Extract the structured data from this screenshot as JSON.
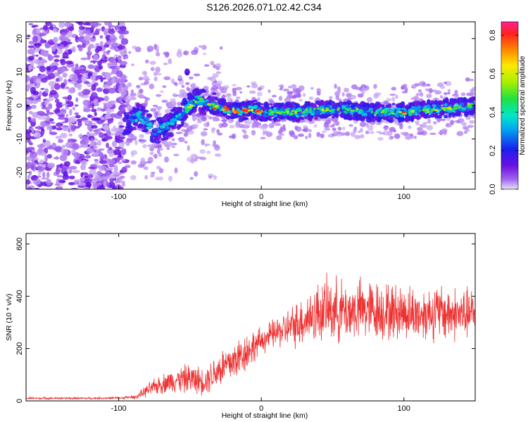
{
  "title": "S126.2026.071.02.42.C34",
  "colors": {
    "snr_line": "#ee3333",
    "spectro_low": "#ebe0ff",
    "spectro_mid": "#7a1ee8",
    "spectro_high": "#ff2a2a"
  },
  "chart_data": [
    {
      "type": "heatmap",
      "title": "S126.2026.071.02.42.C34",
      "xlabel": "Height of straight line (km)",
      "ylabel": "Frequency (Hz)",
      "xlim": [
        -165,
        150
      ],
      "ylim": [
        -25,
        25
      ],
      "x_ticks": [
        -100,
        0,
        100
      ],
      "x_tick_labels": [
        "-100",
        "0",
        "100"
      ],
      "y_ticks": [
        -20,
        -10,
        0,
        10,
        20
      ],
      "y_tick_labels": [
        "-20",
        "-10",
        "0",
        "10",
        "20"
      ],
      "colorbar": {
        "label": "Normalized spectral amplitude",
        "range": [
          0,
          0.87
        ],
        "ticks": [
          0.0,
          0.2,
          0.4,
          0.6,
          0.8
        ],
        "tick_labels": [
          "0.0",
          "0.2",
          "0.4",
          "0.6",
          "0.8"
        ],
        "colormap": "rainbow (purple-blue-cyan-green-yellow-red-magenta)"
      },
      "signal_track": {
        "description": "Strong narrow band centered near 0 Hz from about -50 km to 150 km; noise below -95 km",
        "x": [
          -95,
          -85,
          -75,
          -65,
          -55,
          -45,
          -35,
          -25,
          -15,
          -5,
          0,
          25,
          50,
          75,
          100,
          125,
          150
        ],
        "center_freq_hz": [
          -5,
          -3,
          -8,
          -6,
          -2,
          2,
          0,
          -1,
          -2,
          -1,
          -2,
          -2,
          -1,
          -2,
          -2,
          -1,
          0
        ]
      }
    },
    {
      "type": "line",
      "xlabel": "Height of straight line (km)",
      "ylabel": "SNR (10 * v/v)",
      "xlim": [
        -165,
        150
      ],
      "ylim": [
        0,
        640
      ],
      "x_ticks": [
        -100,
        0,
        100
      ],
      "x_tick_labels": [
        "-100",
        "0",
        "100"
      ],
      "y_ticks": [
        0,
        200,
        400,
        600
      ],
      "y_tick_labels": [
        "0",
        "200",
        "400",
        "600"
      ],
      "series": [
        {
          "name": "SNR",
          "x": [
            -165,
            -140,
            -120,
            -100,
            -88,
            -80,
            -70,
            -60,
            -50,
            -40,
            -30,
            -20,
            -10,
            0,
            10,
            20,
            30,
            40,
            50,
            60,
            70,
            80,
            90,
            100,
            110,
            120,
            130,
            140,
            150
          ],
          "mean": [
            10,
            10,
            10,
            11,
            15,
            40,
            65,
            80,
            85,
            75,
            120,
            150,
            190,
            230,
            260,
            280,
            310,
            340,
            350,
            340,
            350,
            345,
            340,
            340,
            330,
            340,
            335,
            330,
            330
          ],
          "amplitude": [
            5,
            5,
            5,
            5,
            8,
            30,
            45,
            55,
            70,
            60,
            90,
            100,
            90,
            60,
            70,
            90,
            120,
            140,
            150,
            140,
            140,
            140,
            130,
            130,
            120,
            130,
            130,
            120,
            120
          ]
        }
      ]
    }
  ]
}
